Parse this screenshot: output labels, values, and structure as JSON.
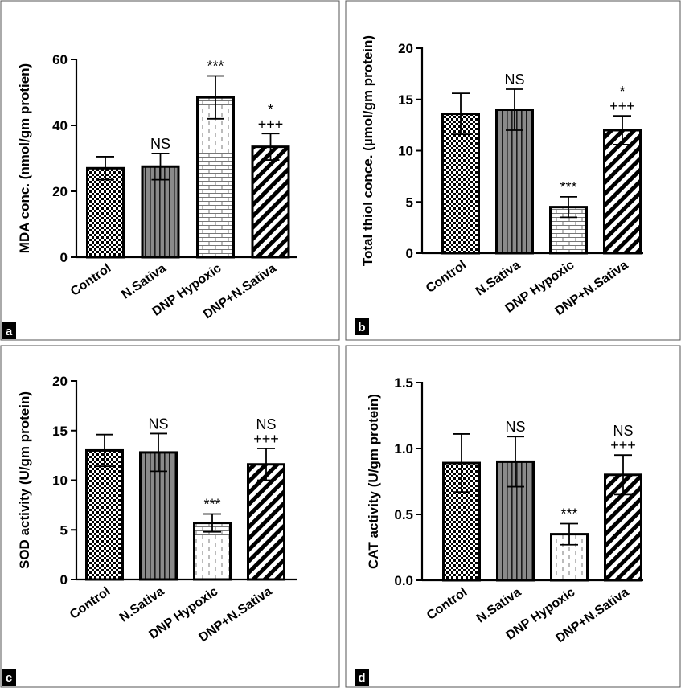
{
  "chart_data": [
    {
      "panel": "a",
      "type": "bar",
      "categories": [
        "Control",
        "N.Sativa",
        "DNP Hypoxic",
        "DNP+N.Sativa"
      ],
      "values": [
        27,
        27.5,
        48.5,
        33.5
      ],
      "errors": [
        3.5,
        4,
        6.5,
        4
      ],
      "annotations": [
        [],
        [
          "NS"
        ],
        [
          "***"
        ],
        [
          "*",
          "+++"
        ]
      ],
      "ylabel": "MDA conc. (nmol/gm protien)",
      "ylim": [
        0,
        60
      ],
      "yticks": [
        0,
        20,
        40,
        60
      ],
      "patterns": [
        "checker",
        "vlines",
        "brick",
        "diagonal"
      ]
    },
    {
      "panel": "b",
      "type": "bar",
      "categories": [
        "Control",
        "N.Sativa",
        "DNP Hypoxic",
        "DNP+N.Sativa"
      ],
      "values": [
        13.6,
        14,
        4.5,
        12
      ],
      "errors": [
        2,
        2,
        1,
        1.4
      ],
      "annotations": [
        [],
        [
          "NS"
        ],
        [
          "***"
        ],
        [
          "*",
          "+++"
        ]
      ],
      "ylabel": "Total thiol conce. (µmol/gm protein)",
      "ylim": [
        0,
        20
      ],
      "yticks": [
        0,
        5,
        10,
        15,
        20
      ],
      "patterns": [
        "checker",
        "vlines",
        "brick",
        "diagonal"
      ]
    },
    {
      "panel": "c",
      "type": "bar",
      "categories": [
        "Control",
        "N.Sativa",
        "DNP Hypoxic",
        "DNP+N.Sativa"
      ],
      "values": [
        13,
        12.8,
        5.7,
        11.6
      ],
      "errors": [
        1.6,
        1.9,
        0.9,
        1.6
      ],
      "annotations": [
        [],
        [
          "NS"
        ],
        [
          "***"
        ],
        [
          "NS",
          "+++"
        ]
      ],
      "ylabel": "SOD activity (U/gm protein)",
      "ylim": [
        0,
        20
      ],
      "yticks": [
        0,
        5,
        10,
        15,
        20
      ],
      "patterns": [
        "checker",
        "vlines",
        "brick",
        "diagonal"
      ]
    },
    {
      "panel": "d",
      "type": "bar",
      "categories": [
        "Control",
        "N.Sativa",
        "DNP Hypoxic",
        "DNP+N.Sativa"
      ],
      "values": [
        0.89,
        0.9,
        0.35,
        0.8
      ],
      "errors": [
        0.22,
        0.19,
        0.08,
        0.15
      ],
      "annotations": [
        [],
        [
          "NS"
        ],
        [
          "***"
        ],
        [
          "NS",
          "+++"
        ]
      ],
      "ylabel": "CAT activity (U/gm protein)",
      "ylim": [
        0,
        1.5
      ],
      "yticks": [
        "0.0",
        "0.5",
        "1.0",
        "1.5"
      ],
      "patterns": [
        "checker",
        "vlines",
        "brick",
        "diagonal"
      ]
    }
  ]
}
